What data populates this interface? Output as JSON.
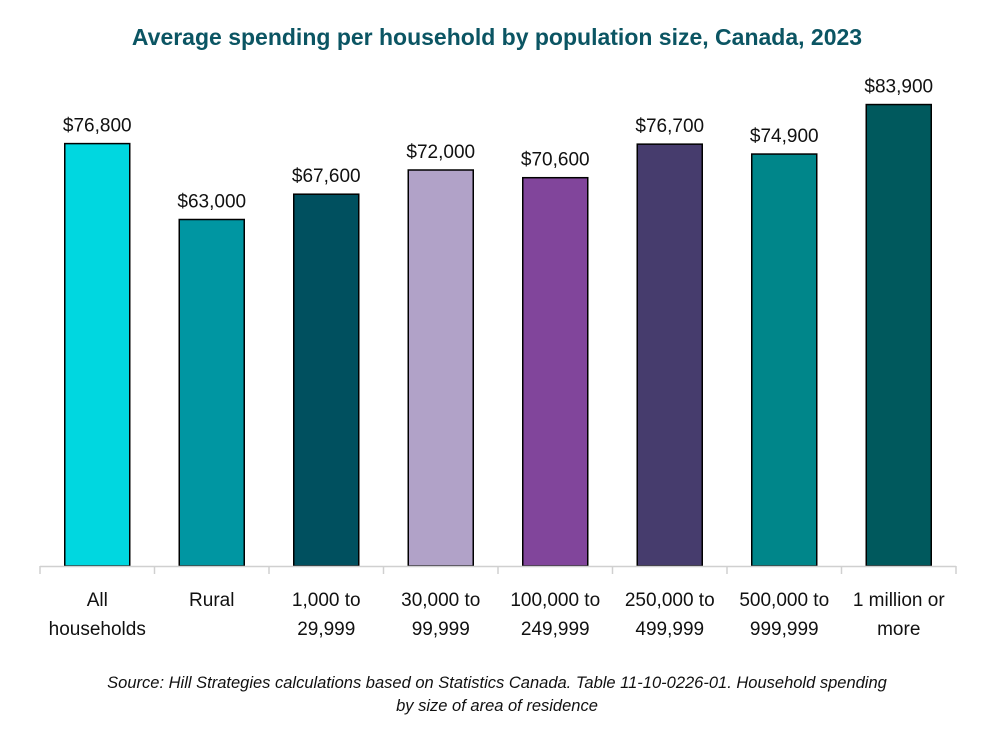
{
  "chart_data": {
    "type": "bar",
    "title": "Average spending per household by population size, Canada, 2023",
    "xlabel": "",
    "ylabel": "",
    "ylim": [
      0,
      88000
    ],
    "grid": false,
    "legend": "none",
    "categories": [
      [
        "All",
        "households"
      ],
      [
        "Rural"
      ],
      [
        "1,000 to",
        "29,999"
      ],
      [
        "30,000 to",
        "99,999"
      ],
      [
        "100,000 to",
        "249,999"
      ],
      [
        "250,000 to",
        "499,999"
      ],
      [
        "500,000 to",
        "999,999"
      ],
      [
        "1 million or",
        "more"
      ]
    ],
    "values": [
      76800,
      63000,
      67600,
      72000,
      70600,
      76700,
      74900,
      83900
    ],
    "data_labels": [
      "$76,800",
      "$63,000",
      "$67,600",
      "$72,000",
      "$70,600",
      "$76,700",
      "$74,900",
      "$83,900"
    ],
    "colors": [
      "#00d7e0",
      "#0096a2",
      "#00505f",
      "#b1a2c8",
      "#81459b",
      "#463c6d",
      "#00868a",
      "#00595d"
    ],
    "source": "Source: Hill Strategies calculations based on Statistics Canada. Table 11-10-0226-01. Household spending by size of area of residence"
  }
}
